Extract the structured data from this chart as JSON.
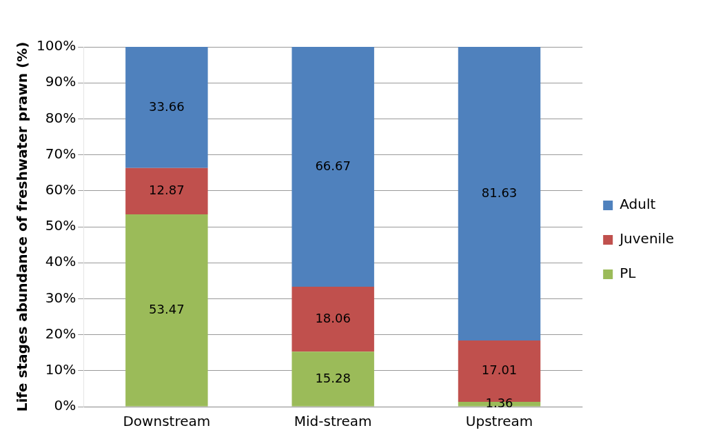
{
  "chart_data": {
    "type": "bar",
    "stacked": true,
    "ylabel": "Life stages abundance of freshwater prawn (%)",
    "categories": [
      "Downstream",
      "Mid-stream",
      "Upstream"
    ],
    "series": [
      {
        "name": "PL",
        "color": "#9bbb59",
        "values": [
          53.47,
          15.28,
          1.36
        ]
      },
      {
        "name": "Juvenile",
        "color": "#c0504d",
        "values": [
          12.87,
          18.06,
          17.01
        ]
      },
      {
        "name": "Adult",
        "color": "#4f81bd",
        "values": [
          33.66,
          66.67,
          81.63
        ]
      }
    ],
    "ylim": [
      0,
      100
    ],
    "yticks": [
      {
        "value": 0,
        "label": "0%"
      },
      {
        "value": 10,
        "label": "10%"
      },
      {
        "value": 20,
        "label": "20%"
      },
      {
        "value": 30,
        "label": "30%"
      },
      {
        "value": 40,
        "label": "40%"
      },
      {
        "value": 50,
        "label": "50%"
      },
      {
        "value": 60,
        "label": "60%"
      },
      {
        "value": 70,
        "label": "70%"
      },
      {
        "value": 80,
        "label": "80%"
      },
      {
        "value": 90,
        "label": "90%"
      },
      {
        "value": 100,
        "label": "100%"
      }
    ],
    "grid": "y",
    "legend": "right",
    "data_labels": true
  }
}
